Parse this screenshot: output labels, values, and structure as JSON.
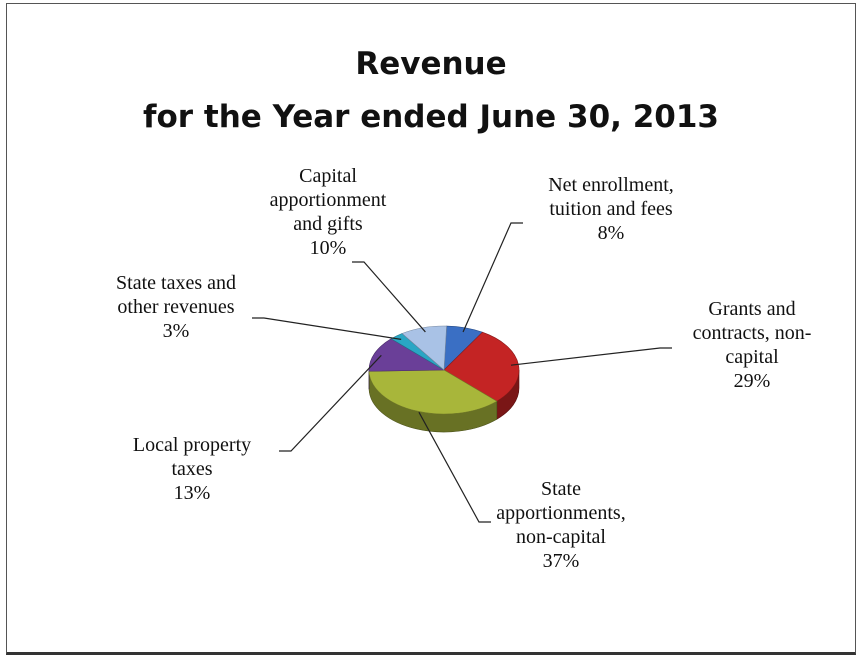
{
  "chart_data": {
    "type": "pie",
    "title_line1": "Revenue",
    "title_line2": "for the Year ended June 30, 2013",
    "slices": [
      {
        "label_lines": [
          "Net enrollment,",
          "tuition and fees",
          "8%"
        ],
        "value": 8,
        "color": "#3a6fc4"
      },
      {
        "label_lines": [
          "Grants and",
          "contracts, non-",
          "capital",
          "29%"
        ],
        "value": 29,
        "color": "#c42424"
      },
      {
        "label_lines": [
          "State",
          "apportionments,",
          "non-capital",
          "37%"
        ],
        "value": 37,
        "color": "#a8b63a"
      },
      {
        "label_lines": [
          "Local property",
          "taxes",
          "13%"
        ],
        "value": 13,
        "color": "#6a3f98"
      },
      {
        "label_lines": [
          "State taxes and",
          "other revenues",
          "3%"
        ],
        "value": 3,
        "color": "#2aa6c4"
      },
      {
        "label_lines": [
          "Capital",
          "apportionment",
          "and gifts",
          "10%"
        ],
        "value": 10,
        "color": "#a9c2e6"
      }
    ]
  }
}
